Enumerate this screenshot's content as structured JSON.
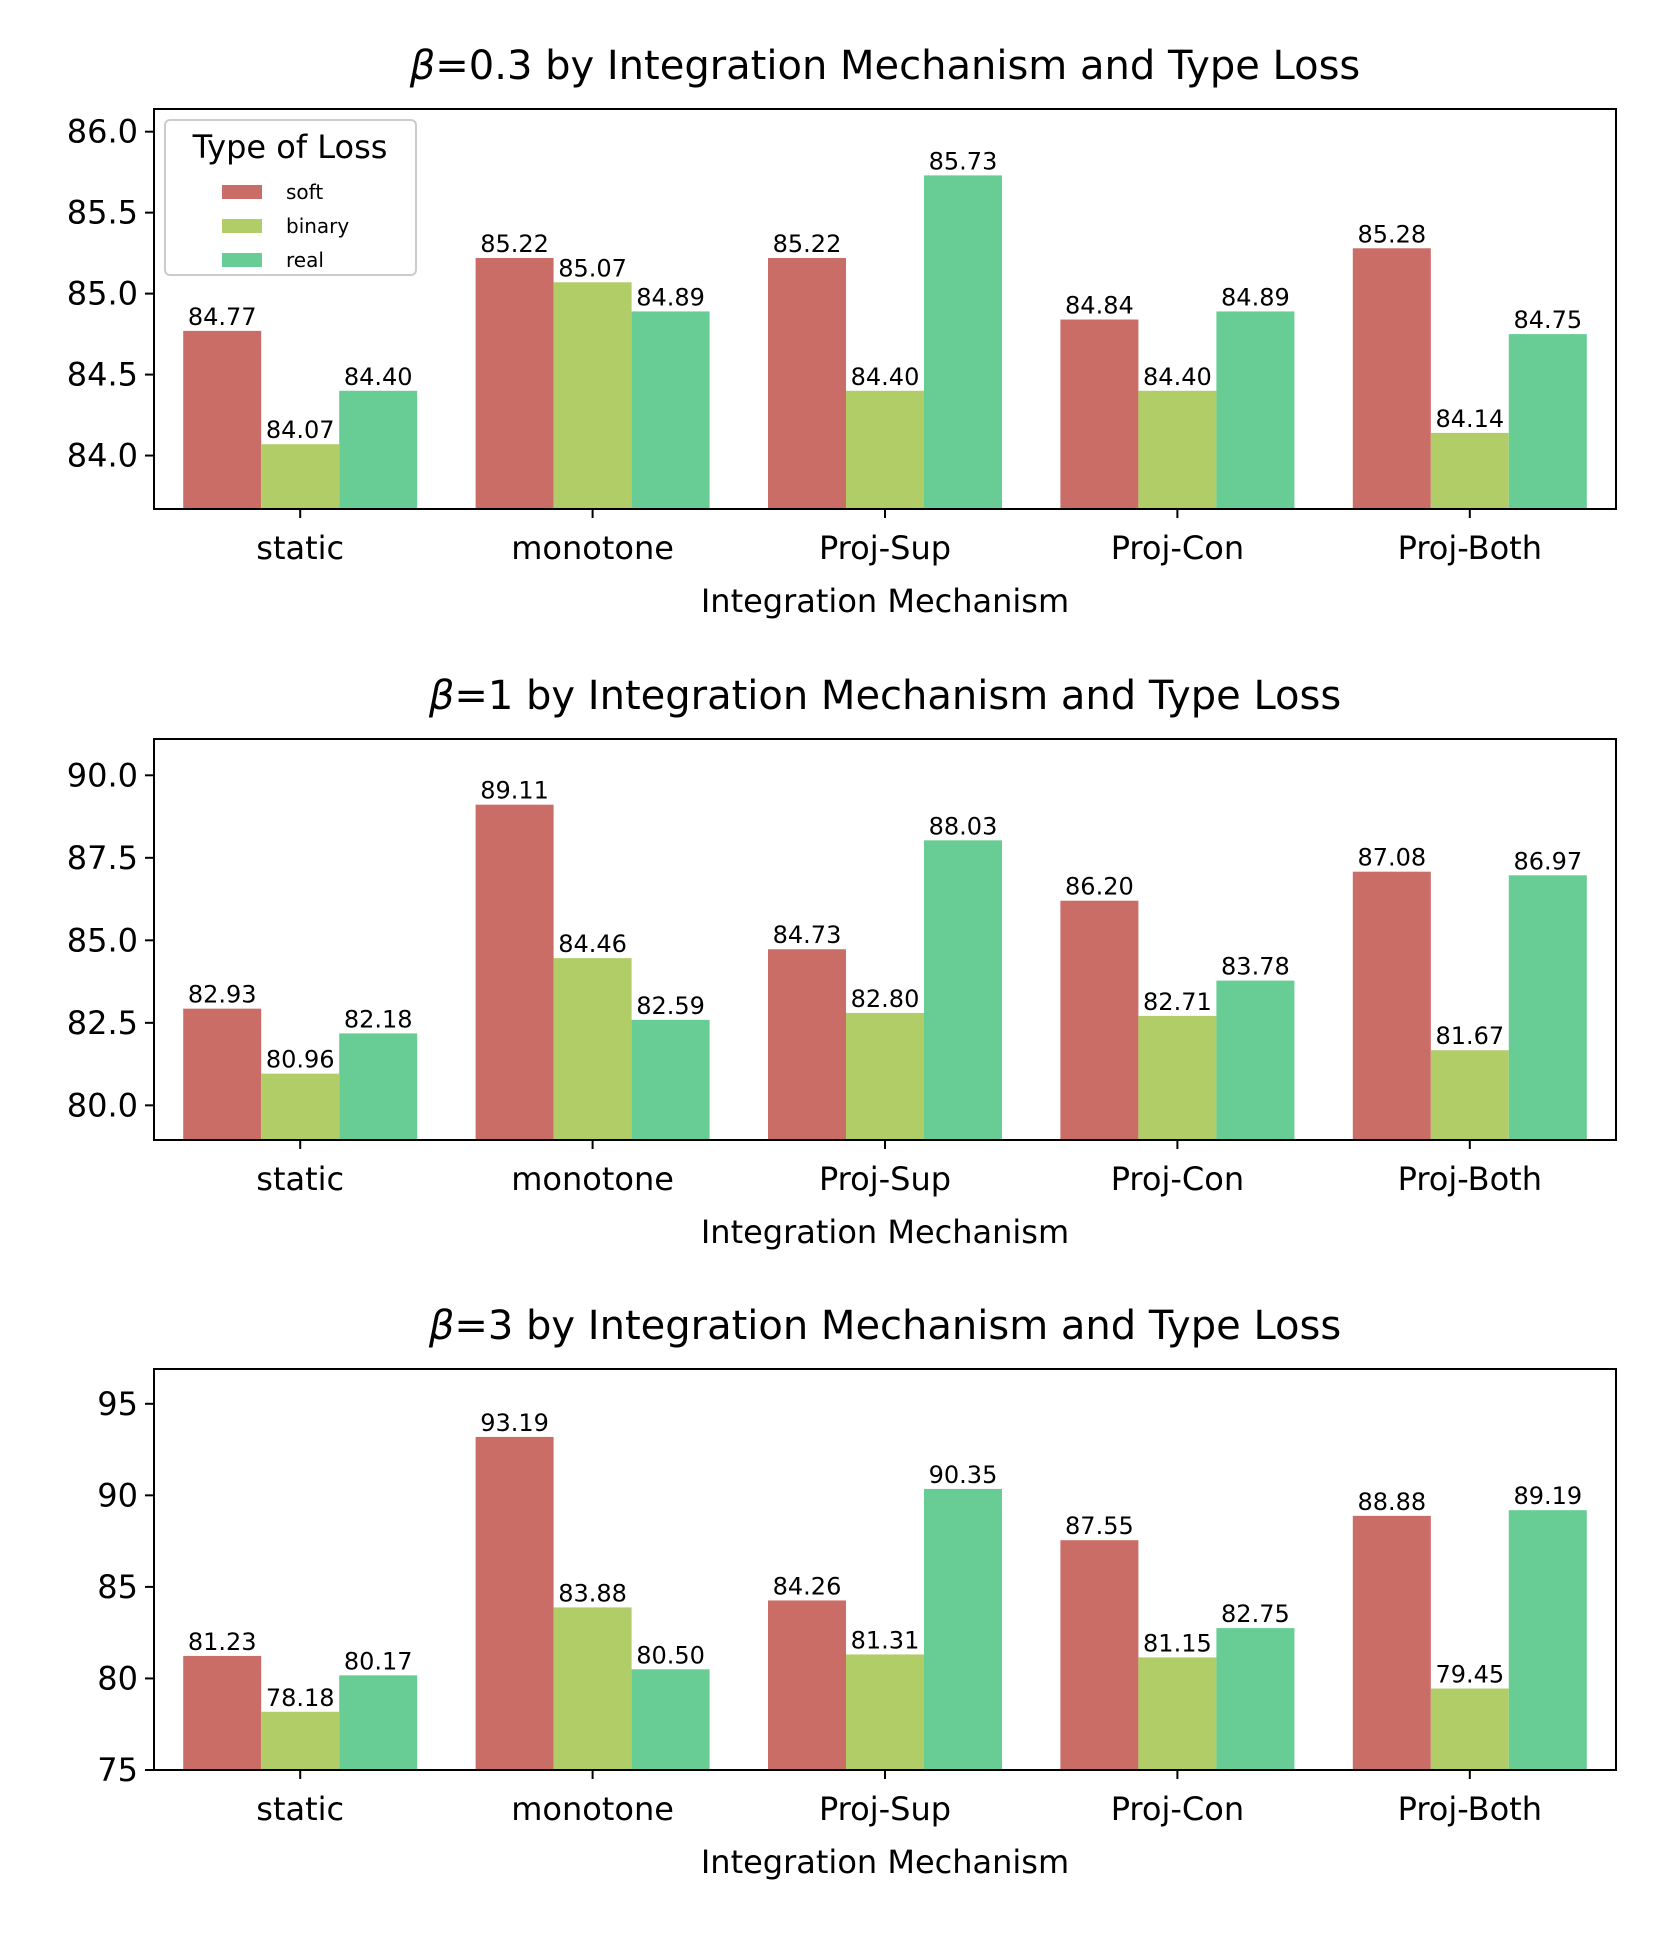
{
  "colors": {
    "soft": "#cb6d67",
    "binary": "#b1cd67",
    "real": "#67cd94"
  },
  "legend": {
    "title": "Type of Loss",
    "labels": [
      "soft",
      "binary",
      "real"
    ]
  },
  "chart_data": [
    {
      "type": "bar",
      "title_prefix": "β",
      "title_suffix": "=0.3 by Integration Mechanism and Type Loss",
      "xlabel": "Integration Mechanism",
      "ylabel": "",
      "categories": [
        "static",
        "monotone",
        "Proj-Sup",
        "Proj-Con",
        "Proj-Both"
      ],
      "series": [
        {
          "name": "soft",
          "values": [
            84.77,
            85.22,
            85.22,
            84.84,
            85.28
          ],
          "labels": [
            "84.77",
            "85.22",
            "85.22",
            "84.84",
            "85.28"
          ]
        },
        {
          "name": "binary",
          "values": [
            84.07,
            85.07,
            84.4,
            84.4,
            84.14
          ],
          "labels": [
            "84.07",
            "85.07",
            "84.40",
            "84.40",
            "84.14"
          ]
        },
        {
          "name": "real",
          "values": [
            84.4,
            84.89,
            85.73,
            84.89,
            84.75
          ],
          "labels": [
            "84.40",
            "84.89",
            "85.73",
            "84.89",
            "84.75"
          ]
        }
      ],
      "ylim": [
        83.67,
        86.14
      ],
      "yticks": [
        84.0,
        84.5,
        85.0,
        85.5,
        86.0
      ],
      "ytick_labels": [
        "84.0",
        "84.5",
        "85.0",
        "85.5",
        "86.0"
      ],
      "legend": true
    },
    {
      "type": "bar",
      "title_prefix": "β",
      "title_suffix": "=1 by Integration Mechanism and Type Loss",
      "xlabel": "Integration Mechanism",
      "ylabel": "",
      "categories": [
        "static",
        "monotone",
        "Proj-Sup",
        "Proj-Con",
        "Proj-Both"
      ],
      "series": [
        {
          "name": "soft",
          "values": [
            82.93,
            89.11,
            84.73,
            86.2,
            87.08
          ],
          "labels": [
            "82.93",
            "89.11",
            "84.73",
            "86.20",
            "87.08"
          ]
        },
        {
          "name": "binary",
          "values": [
            80.96,
            84.46,
            82.8,
            82.71,
            81.67
          ],
          "labels": [
            "80.96",
            "84.46",
            "82.80",
            "82.71",
            "81.67"
          ]
        },
        {
          "name": "real",
          "values": [
            82.18,
            82.59,
            88.03,
            83.78,
            86.97
          ],
          "labels": [
            "82.18",
            "82.59",
            "88.03",
            "83.78",
            "86.97"
          ]
        }
      ],
      "ylim": [
        78.95,
        91.1
      ],
      "yticks": [
        80.0,
        82.5,
        85.0,
        87.5,
        90.0
      ],
      "ytick_labels": [
        "80.0",
        "82.5",
        "85.0",
        "87.5",
        "90.0"
      ],
      "legend": false
    },
    {
      "type": "bar",
      "title_prefix": "β",
      "title_suffix": "=3 by Integration Mechanism and Type Loss",
      "xlabel": "Integration Mechanism",
      "ylabel": "",
      "categories": [
        "static",
        "monotone",
        "Proj-Sup",
        "Proj-Con",
        "Proj-Both"
      ],
      "series": [
        {
          "name": "soft",
          "values": [
            81.23,
            93.19,
            84.26,
            87.55,
            88.88
          ],
          "labels": [
            "81.23",
            "93.19",
            "84.26",
            "87.55",
            "88.88"
          ]
        },
        {
          "name": "binary",
          "values": [
            78.18,
            83.88,
            81.31,
            81.15,
            79.45
          ],
          "labels": [
            "78.18",
            "83.88",
            "81.31",
            "81.15",
            "79.45"
          ]
        },
        {
          "name": "real",
          "values": [
            80.17,
            80.5,
            90.35,
            82.75,
            89.19
          ],
          "labels": [
            "80.17",
            "80.50",
            "90.35",
            "82.75",
            "89.19"
          ]
        }
      ],
      "ylim": [
        75,
        96.9
      ],
      "yticks": [
        75,
        80,
        85,
        90,
        95
      ],
      "ytick_labels": [
        "75",
        "80",
        "85",
        "90",
        "95"
      ],
      "legend": false
    }
  ]
}
